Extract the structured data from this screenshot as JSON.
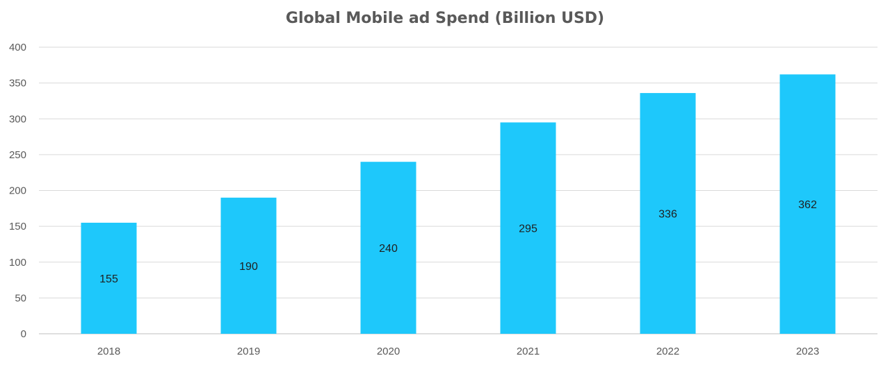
{
  "chart_data": {
    "type": "bar",
    "title": "Global Mobile ad Spend (Billion USD)",
    "categories": [
      "2018",
      "2019",
      "2020",
      "2021",
      "2022",
      "2023"
    ],
    "values": [
      155,
      190,
      240,
      295,
      336,
      362
    ],
    "data_labels": [
      "155",
      "190",
      "240",
      "295",
      "336",
      "362"
    ],
    "xlabel": "",
    "ylabel": "",
    "ylim": [
      0,
      400
    ],
    "yticks": [
      0,
      50,
      100,
      150,
      200,
      250,
      300,
      350,
      400
    ],
    "ytick_labels": [
      "0",
      "50",
      "100",
      "150",
      "200",
      "250",
      "300",
      "350",
      "400"
    ],
    "grid": true,
    "legend": "none",
    "bar_color": "#1EC8FB",
    "grid_color": "#d9d9d9",
    "axis_color": "#bfbfbf"
  }
}
